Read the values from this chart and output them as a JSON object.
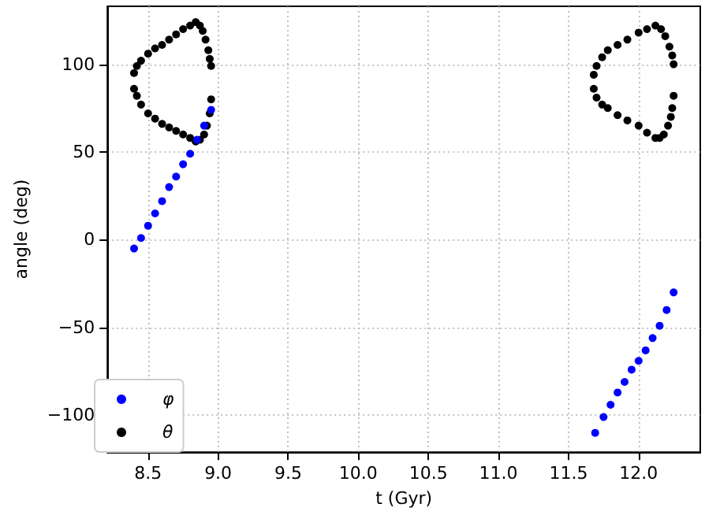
{
  "chart_data": {
    "type": "scatter",
    "xlabel": "t (Gyr)",
    "ylabel": "angle (deg)",
    "xlim": [
      8.21,
      12.44
    ],
    "ylim": [
      -121,
      133
    ],
    "xticks": [
      {
        "value": 8.5,
        "label": "8.5"
      },
      {
        "value": 9,
        "label": "9.0"
      },
      {
        "value": 9.5,
        "label": "9.5"
      },
      {
        "value": 10,
        "label": "10.0"
      },
      {
        "value": 10.5,
        "label": "10.5"
      },
      {
        "value": 11,
        "label": "11.0"
      },
      {
        "value": 11.5,
        "label": "11.5"
      },
      {
        "value": 12,
        "label": "12.0"
      }
    ],
    "yticks": [
      {
        "value": -100,
        "label": "−100"
      },
      {
        "value": -50,
        "label": "−50"
      },
      0,
      50,
      100
    ],
    "grid": true,
    "legend": "bottom left",
    "marker": "circle",
    "series": [
      {
        "name": "φ",
        "color": "#0000ff",
        "x": [
          8.4,
          8.45,
          8.5,
          8.55,
          8.6,
          8.65,
          8.7,
          8.75,
          8.8,
          8.85,
          8.9,
          8.95,
          11.69,
          11.75,
          11.8,
          11.85,
          11.9,
          11.95,
          12.0,
          12.05,
          12.1,
          12.15,
          12.2,
          12.25
        ],
        "values": [
          -5,
          1,
          8,
          15,
          22,
          30,
          36,
          43,
          49,
          57,
          65,
          74,
          -110,
          -101,
          -94,
          -87,
          -81,
          -74,
          -69,
          -63,
          -56,
          -49,
          -40,
          -30
        ]
      },
      {
        "name": "θ",
        "color": "#000000",
        "x": [
          8.4,
          8.42,
          8.45,
          8.5,
          8.55,
          8.6,
          8.65,
          8.7,
          8.75,
          8.8,
          8.84,
          8.87,
          8.89,
          8.91,
          8.93,
          8.94,
          8.95,
          8.4,
          8.42,
          8.45,
          8.5,
          8.55,
          8.6,
          8.65,
          8.7,
          8.75,
          8.8,
          8.84,
          8.87,
          8.9,
          8.92,
          8.94,
          8.95,
          11.68,
          11.7,
          11.74,
          11.78,
          11.85,
          11.92,
          12.0,
          12.06,
          12.12,
          12.16,
          12.19,
          12.22,
          12.24,
          12.25,
          11.68,
          11.7,
          11.74,
          11.78,
          11.85,
          11.92,
          12.0,
          12.06,
          12.12,
          12.15,
          12.18,
          12.21,
          12.23,
          12.24,
          12.25
        ],
        "values": [
          95,
          99,
          102,
          106,
          109,
          111,
          114,
          117,
          120,
          122,
          124,
          122,
          119,
          114,
          108,
          103,
          99,
          86,
          82,
          77,
          72,
          69,
          66,
          64,
          62,
          60,
          58,
          56,
          57,
          60,
          65,
          72,
          80,
          94,
          99,
          104,
          108,
          111,
          114,
          118,
          120,
          122,
          120,
          116,
          110,
          105,
          100,
          86,
          81,
          77,
          75,
          71,
          68,
          65,
          61,
          58,
          58,
          60,
          65,
          70,
          75,
          82
        ]
      }
    ]
  }
}
